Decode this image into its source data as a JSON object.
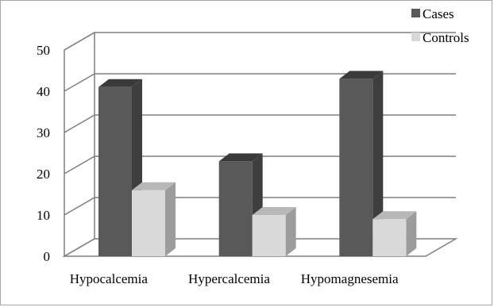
{
  "chart_data": {
    "type": "bar",
    "categories": [
      "Hypocalcemia",
      "Hypercalcemia",
      "Hypomagnesemia"
    ],
    "series": [
      {
        "name": "Cases",
        "values": [
          41,
          23,
          43
        ]
      },
      {
        "name": "Controls",
        "values": [
          16,
          10,
          9
        ]
      }
    ],
    "ylim": [
      0,
      50
    ],
    "yticks": [
      0,
      10,
      20,
      30,
      40,
      50
    ],
    "grid": true,
    "legend": "top-right",
    "colors": {
      "Cases": "#595959",
      "Controls": "#d9d9d9"
    }
  }
}
